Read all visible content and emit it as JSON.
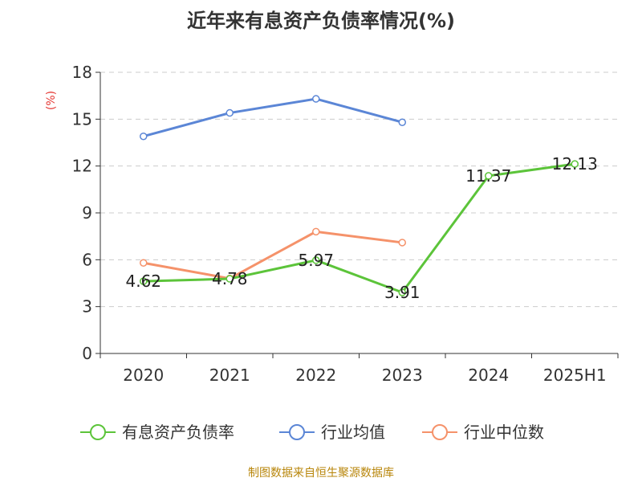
{
  "chart_data": {
    "type": "line",
    "title": "近年来有息资产负债率情况(%)",
    "ylabel": "(%)",
    "categories": [
      "2020",
      "2021",
      "2022",
      "2023",
      "2024",
      "2025H1"
    ],
    "ylim": [
      0,
      18
    ],
    "yticks": [
      0,
      3,
      6,
      9,
      12,
      15,
      18
    ],
    "grid": true,
    "legend_position": "bottom",
    "series": [
      {
        "name": "有息资产负债率",
        "color": "#5cc43a",
        "values": [
          4.62,
          4.78,
          5.97,
          3.91,
          11.37,
          12.13
        ],
        "labels": [
          "4.62",
          "4.78",
          "5.97",
          "3.91",
          "11.37",
          "12.13"
        ]
      },
      {
        "name": "行业均值",
        "color": "#5b86d6",
        "values": [
          13.9,
          15.4,
          16.3,
          14.8,
          null,
          null
        ]
      },
      {
        "name": "行业中位数",
        "color": "#f5926a",
        "values": [
          5.8,
          4.8,
          7.8,
          7.1,
          null,
          null
        ]
      }
    ]
  },
  "source": "制图数据来自恒生聚源数据库"
}
